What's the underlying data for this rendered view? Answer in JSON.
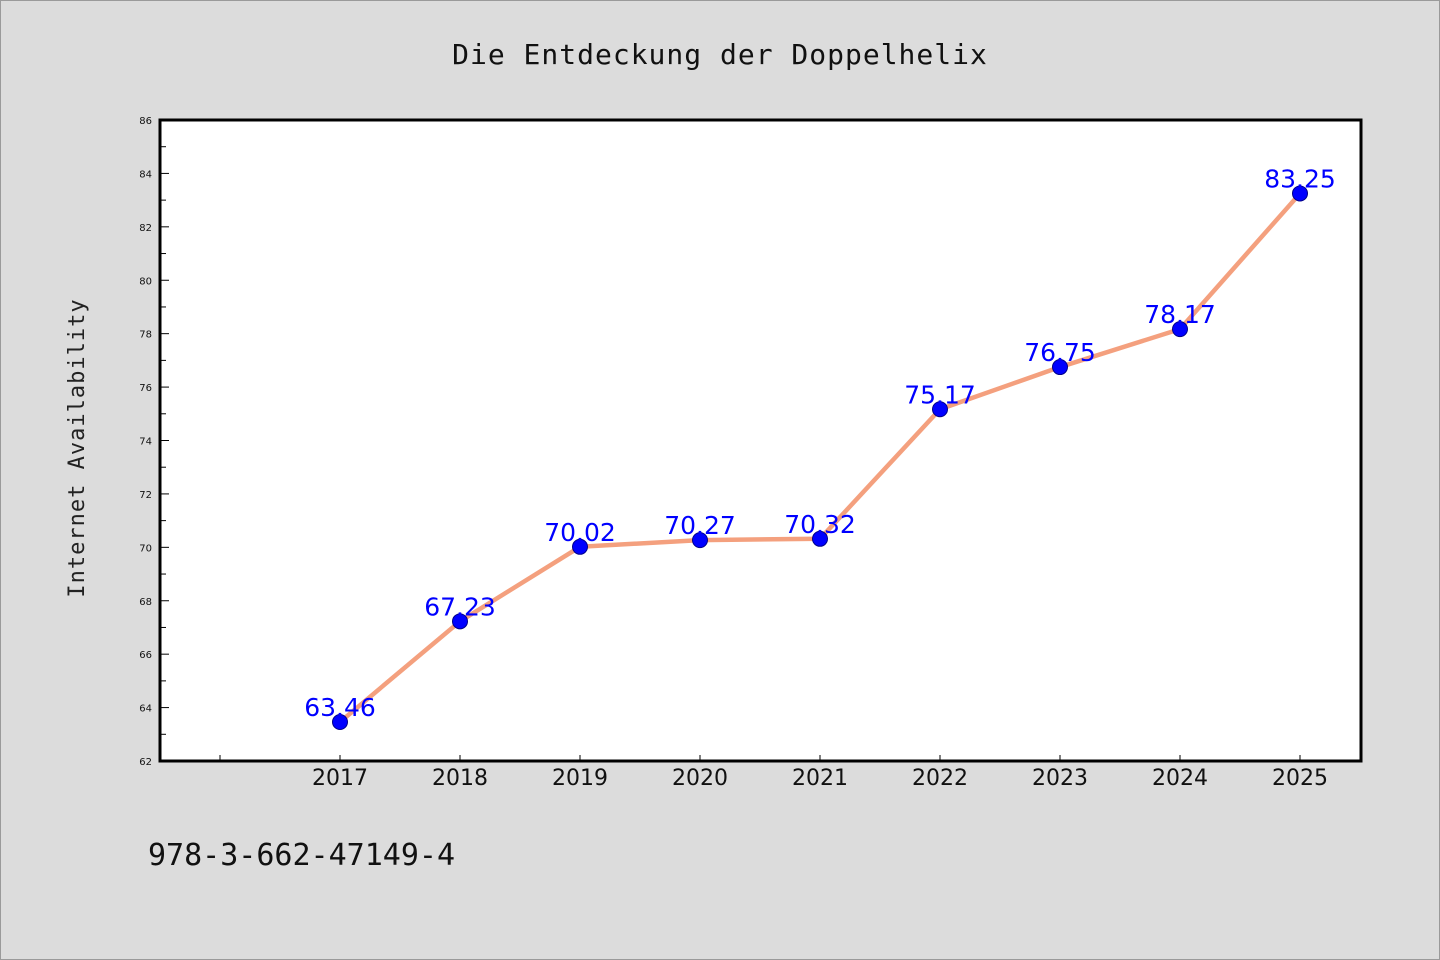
{
  "chart_data": {
    "type": "line",
    "title": "Die Entdeckung der Doppelhelix",
    "xlabel": "",
    "ylabel": "Internet Availability",
    "categories": [
      "2017",
      "2018",
      "2019",
      "2020",
      "2021",
      "2022",
      "2023",
      "2024",
      "2025"
    ],
    "series": [
      {
        "values": [
          63.46,
          67.23,
          70.02,
          70.27,
          70.32,
          75.17,
          76.75,
          78.17,
          83.25
        ],
        "line_color": "#f4a07e",
        "marker_color": "#0000ff"
      }
    ],
    "data_labels": [
      "63.46",
      "67.23",
      "70.02",
      "70.27",
      "70.32",
      "75.17",
      "76.75",
      "78.17",
      "83.25"
    ],
    "ylim": [
      62,
      86
    ],
    "yticks": [
      "62",
      "64",
      "66",
      "68",
      "70",
      "72",
      "74",
      "76",
      "78",
      "80",
      "82",
      "84",
      "86"
    ],
    "grid": false,
    "legend": "none"
  },
  "footer": {
    "isbn": "978-3-662-47149-4"
  },
  "colors": {
    "background": "#dcdcdc",
    "plot_background": "#ffffff",
    "label_color": "#0000ff"
  }
}
